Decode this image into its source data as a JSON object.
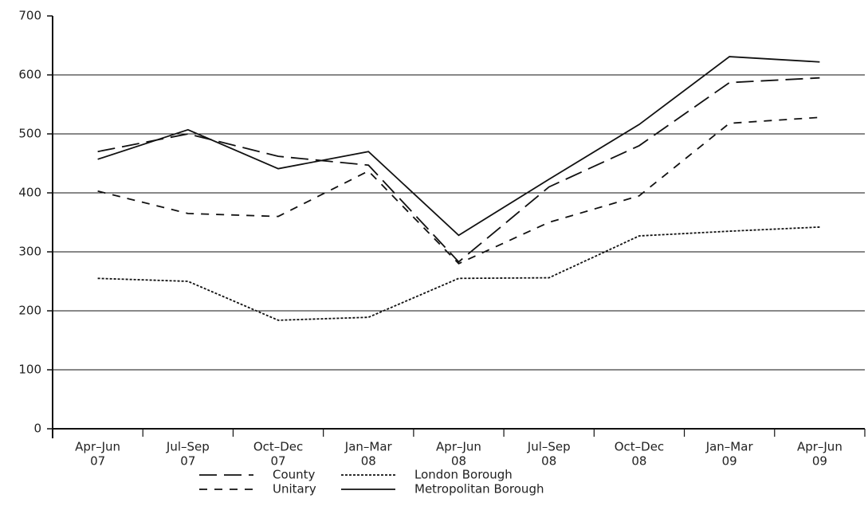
{
  "chart_data": {
    "type": "line",
    "categories": [
      [
        "Apr–Jun",
        "07"
      ],
      [
        "Jul–Sep",
        "07"
      ],
      [
        "Oct–Dec",
        "07"
      ],
      [
        "Jan–Mar",
        "08"
      ],
      [
        "Apr–Jun",
        "08"
      ],
      [
        "Jul–Sep",
        "08"
      ],
      [
        "Oct–Dec",
        "08"
      ],
      [
        "Jan–Mar",
        "09"
      ],
      [
        "Apr–Jun",
        "09"
      ]
    ],
    "series": [
      {
        "name": "County",
        "color": "#111",
        "dash": "22 9",
        "values": [
          470,
          500,
          462,
          447,
          283,
          410,
          480,
          587,
          595
        ]
      },
      {
        "name": "Unitary",
        "color": "#111",
        "dash": "10 9",
        "values": [
          403,
          365,
          360,
          437,
          280,
          350,
          395,
          518,
          528
        ]
      },
      {
        "name": "London Borough",
        "color": "#111",
        "dash": "3 2",
        "values": [
          255,
          250,
          184,
          189,
          255,
          256,
          327,
          335,
          342
        ]
      },
      {
        "name": "Metropolitan Borough",
        "color": "#111",
        "dash": "none",
        "values": [
          457,
          507,
          441,
          470,
          328,
          423,
          516,
          631,
          622
        ]
      }
    ],
    "ylim": [
      0,
      700
    ],
    "yticks": [
      0,
      100,
      200,
      300,
      400,
      500,
      600,
      700
    ],
    "grid": true
  }
}
